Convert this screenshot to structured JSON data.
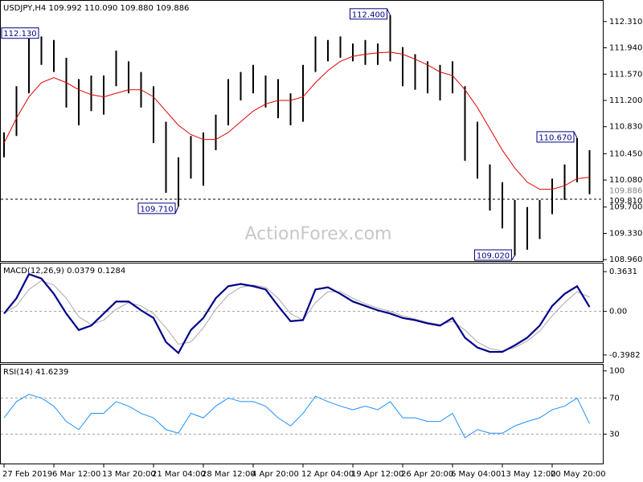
{
  "chart_data": [
    {
      "type": "hilo",
      "title": "USDJPY,H4 109.992 110.090 109.880 109.886",
      "watermark": "ActionForex.com",
      "color": "#000000",
      "high": [
        110.75,
        111.4,
        112.13,
        112.1,
        112.05,
        111.8,
        111.5,
        111.55,
        111.55,
        111.9,
        111.75,
        111.6,
        111.4,
        110.9,
        110.4,
        110.7,
        110.75,
        111.0,
        111.5,
        111.6,
        111.7,
        111.55,
        111.5,
        111.3,
        111.7,
        112.1,
        112.05,
        112.1,
        112.0,
        112.05,
        112.0,
        112.4,
        111.95,
        111.85,
        111.75,
        111.7,
        111.75,
        111.4,
        110.9,
        110.3,
        110.05,
        109.8,
        109.7,
        109.8,
        110.1,
        110.3,
        110.67,
        110.5
      ],
      "low": [
        110.4,
        110.7,
        111.3,
        111.7,
        111.6,
        111.1,
        110.85,
        111.05,
        111.0,
        111.4,
        111.3,
        111.1,
        110.6,
        109.9,
        109.71,
        110.1,
        110.0,
        110.5,
        110.85,
        111.2,
        111.3,
        111.1,
        110.95,
        110.85,
        110.9,
        111.6,
        111.75,
        111.8,
        111.75,
        111.7,
        111.7,
        111.75,
        111.4,
        111.35,
        111.3,
        111.2,
        111.3,
        110.35,
        110.1,
        109.65,
        109.4,
        109.02,
        109.1,
        109.25,
        109.6,
        109.8,
        110.05,
        109.88
      ],
      "ma_color": "#e00000",
      "ma_values": [
        110.6,
        110.95,
        111.25,
        111.45,
        111.52,
        111.45,
        111.35,
        111.28,
        111.25,
        111.3,
        111.35,
        111.35,
        111.25,
        111.05,
        110.85,
        110.72,
        110.65,
        110.65,
        110.75,
        110.9,
        111.05,
        111.15,
        111.2,
        111.2,
        111.25,
        111.45,
        111.62,
        111.75,
        111.82,
        111.85,
        111.87,
        111.88,
        111.85,
        111.78,
        111.7,
        111.6,
        111.55,
        111.35,
        111.1,
        110.8,
        110.5,
        110.25,
        110.05,
        109.95,
        109.95,
        110.0,
        110.1,
        110.12
      ],
      "ylim": [
        108.94,
        112.59
      ],
      "yticks": [
        {
          "value": 112.31,
          "label": "112.310"
        },
        {
          "value": 111.94,
          "label": "111.940"
        },
        {
          "value": 111.57,
          "label": "111.570"
        },
        {
          "value": 111.2,
          "label": "111.200"
        },
        {
          "value": 110.83,
          "label": "110.830"
        },
        {
          "value": 110.45,
          "label": "110.450"
        },
        {
          "value": 110.08,
          "label": "110.080"
        },
        {
          "value": 109.7,
          "label": "109.700"
        },
        {
          "value": 109.33,
          "label": "109.330"
        },
        {
          "value": 108.96,
          "label": "108.960"
        }
      ],
      "annotations": [
        {
          "value": 112.13,
          "label": "112.130"
        },
        {
          "value": 112.4,
          "label": "112.400"
        },
        {
          "value": 109.71,
          "label": "109.710"
        },
        {
          "value": 110.67,
          "label": "110.670"
        },
        {
          "value": 109.02,
          "label": "109.020"
        }
      ],
      "last_price": {
        "value": 109.886,
        "label": "109.886"
      },
      "level": {
        "value": 109.81,
        "label": "109.810"
      }
    },
    {
      "type": "line",
      "title": "MACD(12,26,9) 0.0379 0.1284",
      "series": [
        {
          "color": "#00008b",
          "values": [
            -0.02,
            0.12,
            0.34,
            0.3,
            0.16,
            -0.02,
            -0.17,
            -0.13,
            -0.02,
            0.09,
            0.09,
            0.01,
            -0.06,
            -0.28,
            -0.38,
            -0.17,
            -0.06,
            0.12,
            0.23,
            0.25,
            0.23,
            0.2,
            0.05,
            -0.09,
            -0.08,
            0.2,
            0.22,
            0.16,
            0.09,
            0.05,
            0.01,
            -0.02,
            -0.06,
            -0.08,
            -0.11,
            -0.13,
            -0.06,
            -0.24,
            -0.33,
            -0.37,
            -0.37,
            -0.31,
            -0.24,
            -0.13,
            0.05,
            0.16,
            0.23,
            0.04
          ]
        },
        {
          "color": "#a9a9a9",
          "values": [
            -0.02,
            0.05,
            0.2,
            0.28,
            0.24,
            0.12,
            -0.05,
            -0.12,
            -0.08,
            0.02,
            0.08,
            0.05,
            -0.02,
            -0.15,
            -0.3,
            -0.28,
            -0.15,
            0.02,
            0.15,
            0.22,
            0.24,
            0.22,
            0.12,
            -0.02,
            -0.08,
            0.08,
            0.18,
            0.18,
            0.12,
            0.07,
            0.03,
            0.0,
            -0.04,
            -0.07,
            -0.1,
            -0.12,
            -0.09,
            -0.17,
            -0.28,
            -0.34,
            -0.36,
            -0.33,
            -0.27,
            -0.18,
            -0.04,
            0.08,
            0.18,
            0.13
          ]
        }
      ],
      "ylim": [
        -0.465,
        0.43
      ],
      "yticks": [
        0.3631,
        {
          "value": 0,
          "label": "0.00"
        },
        -0.3982
      ],
      "levels": [
        0
      ]
    },
    {
      "type": "line",
      "title": "RSI(14) 41.6239",
      "series": [
        {
          "color": "#1e90ff",
          "values": [
            48,
            66,
            74,
            70,
            61,
            44,
            35,
            53,
            53,
            66,
            61,
            53,
            48,
            35,
            31,
            53,
            48,
            61,
            70,
            66,
            66,
            61,
            48,
            39,
            53,
            72,
            66,
            61,
            57,
            61,
            57,
            66,
            48,
            48,
            44,
            44,
            53,
            26,
            35,
            31,
            31,
            39,
            44,
            48,
            57,
            61,
            70,
            41.6239
          ]
        }
      ],
      "ylim": [
        -2.6,
        106
      ],
      "yticks": [
        100,
        70,
        30
      ],
      "levels": [
        70,
        30
      ],
      "xticks": [
        {
          "value": 0,
          "label": "27 Feb 2019"
        },
        {
          "value": 4,
          "label": "6 Mar 12:00"
        },
        {
          "value": 8,
          "label": "13 Mar 20:00"
        },
        {
          "value": 12,
          "label": "21 Mar 04:00"
        },
        {
          "value": 16,
          "label": "28 Mar 12:00"
        },
        {
          "value": 20,
          "label": "4 Apr 20:00"
        },
        {
          "value": 24,
          "label": "12 Apr 04:00"
        },
        {
          "value": 28,
          "label": "19 Apr 12:00"
        },
        {
          "value": 32,
          "label": "26 Apr 20:00"
        },
        {
          "value": 36,
          "label": "6 May 04:00"
        },
        {
          "value": 40,
          "label": "13 May 12:00"
        },
        {
          "value": 44,
          "label": "20 May 20:00"
        }
      ]
    }
  ]
}
